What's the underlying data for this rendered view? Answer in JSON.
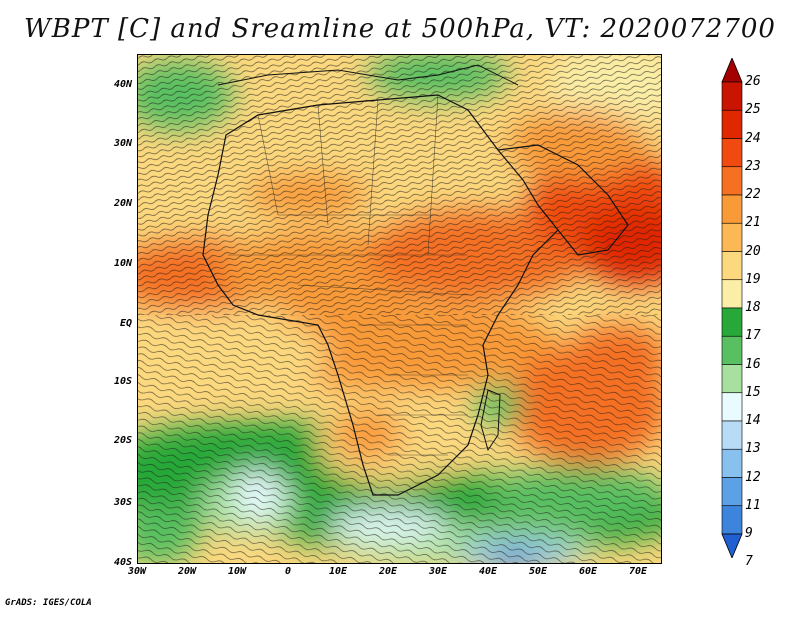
{
  "title": "WBPT [C] and Sreamline at 500hPa, VT: 2020072700",
  "footer": "GrADS: IGES/COLA",
  "lat_labels": [
    "40N",
    "30N",
    "20N",
    "10N",
    "EQ",
    "10S",
    "20S",
    "30S",
    "40S"
  ],
  "lon_labels": [
    "30W",
    "20W",
    "10W",
    "0",
    "10E",
    "20E",
    "30E",
    "40E",
    "50E",
    "60E",
    "70E"
  ],
  "colorbar": {
    "labels": [
      "26",
      "25",
      "24",
      "23",
      "22",
      "21",
      "20",
      "19",
      "18",
      "17",
      "16",
      "15",
      "14",
      "13",
      "12",
      "11",
      "9",
      "7"
    ],
    "colors": [
      "#a50000",
      "#c81400",
      "#e02800",
      "#f04a10",
      "#f57020",
      "#f99a38",
      "#fbb854",
      "#fcd87e",
      "#fbeea6",
      "#28a838",
      "#58c060",
      "#a8e0a0",
      "#e8fbff",
      "#b8dcf5",
      "#88c0ee",
      "#5ca0e6",
      "#3c84dc",
      "#2060d0"
    ]
  },
  "legend_names": {
    "title": "chart-title",
    "footer": "grads-credit"
  }
}
